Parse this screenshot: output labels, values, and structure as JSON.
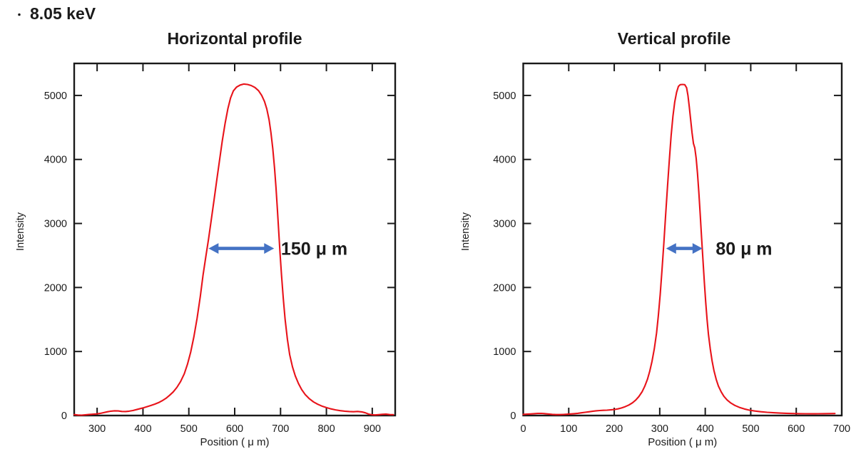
{
  "page": {
    "bullet": "・",
    "energy_label": "8.05 keV"
  },
  "colors": {
    "axis": "#1a1a1a",
    "text": "#1a1a1a",
    "background": "#ffffff"
  },
  "chart_data": [
    {
      "id": "horizontal-profile",
      "type": "line",
      "title": "Horizontal profile",
      "xlabel": "Position ( μ m)",
      "ylabel": "Intensity",
      "xlim": [
        250,
        950
      ],
      "ylim": [
        0,
        5500
      ],
      "xticks": [
        300,
        400,
        500,
        600,
        700,
        800,
        900
      ],
      "yticks": [
        0,
        1000,
        2000,
        3000,
        4000,
        5000
      ],
      "grid": false,
      "legend": "none",
      "line_color": "#e8131a",
      "fwhm_annotation": {
        "text": "150 μ m",
        "fwhm_value_um": 150,
        "arrow_x1": 543,
        "arrow_x2": 686,
        "arrow_y": 2610,
        "label_x": 701,
        "arrow_color": "#4472c4"
      },
      "points": [
        [
          250,
          15
        ],
        [
          258,
          8
        ],
        [
          266,
          6
        ],
        [
          274,
          10
        ],
        [
          282,
          16
        ],
        [
          290,
          20
        ],
        [
          298,
          24
        ],
        [
          306,
          32
        ],
        [
          314,
          44
        ],
        [
          322,
          58
        ],
        [
          330,
          68
        ],
        [
          338,
          73
        ],
        [
          346,
          71
        ],
        [
          354,
          64
        ],
        [
          362,
          62
        ],
        [
          370,
          68
        ],
        [
          378,
          78
        ],
        [
          386,
          92
        ],
        [
          394,
          108
        ],
        [
          402,
          122
        ],
        [
          410,
          140
        ],
        [
          418,
          158
        ],
        [
          426,
          178
        ],
        [
          434,
          202
        ],
        [
          442,
          232
        ],
        [
          450,
          268
        ],
        [
          458,
          315
        ],
        [
          466,
          370
        ],
        [
          474,
          440
        ],
        [
          482,
          530
        ],
        [
          490,
          650
        ],
        [
          497,
          800
        ],
        [
          504,
          990
        ],
        [
          511,
          1230
        ],
        [
          518,
          1520
        ],
        [
          525,
          1860
        ],
        [
          531,
          2190
        ],
        [
          537,
          2480
        ],
        [
          543,
          2760
        ],
        [
          549,
          3060
        ],
        [
          555,
          3370
        ],
        [
          561,
          3680
        ],
        [
          567,
          3990
        ],
        [
          573,
          4290
        ],
        [
          579,
          4560
        ],
        [
          585,
          4790
        ],
        [
          591,
          4960
        ],
        [
          597,
          5070
        ],
        [
          604,
          5130
        ],
        [
          612,
          5163
        ],
        [
          620,
          5178
        ],
        [
          628,
          5172
        ],
        [
          636,
          5155
        ],
        [
          644,
          5125
        ],
        [
          652,
          5075
        ],
        [
          659,
          5000
        ],
        [
          665,
          4905
        ],
        [
          670,
          4790
        ],
        [
          675,
          4620
        ],
        [
          679,
          4420
        ],
        [
          683,
          4170
        ],
        [
          687,
          3860
        ],
        [
          690,
          3560
        ],
        [
          693,
          3230
        ],
        [
          696,
          2880
        ],
        [
          699,
          2530
        ],
        [
          702,
          2200
        ],
        [
          706,
          1830
        ],
        [
          710,
          1500
        ],
        [
          715,
          1190
        ],
        [
          720,
          950
        ],
        [
          726,
          760
        ],
        [
          732,
          620
        ],
        [
          739,
          500
        ],
        [
          746,
          405
        ],
        [
          754,
          325
        ],
        [
          763,
          260
        ],
        [
          772,
          212
        ],
        [
          781,
          176
        ],
        [
          790,
          148
        ],
        [
          800,
          124
        ],
        [
          810,
          104
        ],
        [
          820,
          88
        ],
        [
          830,
          76
        ],
        [
          840,
          68
        ],
        [
          850,
          62
        ],
        [
          859,
          59
        ],
        [
          868,
          63
        ],
        [
          877,
          57
        ],
        [
          885,
          42
        ],
        [
          892,
          22
        ],
        [
          899,
          12
        ],
        [
          906,
          9
        ],
        [
          914,
          13
        ],
        [
          922,
          19
        ],
        [
          930,
          21
        ],
        [
          938,
          15
        ],
        [
          946,
          13
        ]
      ]
    },
    {
      "id": "vertical-profile",
      "type": "line",
      "title": "Vertical profile",
      "xlabel": "Position ( μ m)",
      "ylabel": "Intensity",
      "xlim": [
        0,
        700
      ],
      "ylim": [
        0,
        5500
      ],
      "xticks": [
        0,
        100,
        200,
        300,
        400,
        500,
        600,
        700
      ],
      "yticks": [
        0,
        1000,
        2000,
        3000,
        4000,
        5000
      ],
      "grid": false,
      "legend": "none",
      "line_color": "#e8131a",
      "fwhm_annotation": {
        "text": "80 μ m",
        "fwhm_value_um": 80,
        "arrow_x1": 314,
        "arrow_x2": 394,
        "arrow_y": 2610,
        "label_x": 423,
        "arrow_color": "#4472c4"
      },
      "points": [
        [
          0,
          18
        ],
        [
          8,
          21
        ],
        [
          16,
          25
        ],
        [
          24,
          29
        ],
        [
          32,
          32
        ],
        [
          40,
          33
        ],
        [
          48,
          29
        ],
        [
          56,
          23
        ],
        [
          64,
          18
        ],
        [
          72,
          15
        ],
        [
          80,
          15
        ],
        [
          88,
          17
        ],
        [
          96,
          20
        ],
        [
          104,
          24
        ],
        [
          112,
          29
        ],
        [
          120,
          35
        ],
        [
          128,
          42
        ],
        [
          136,
          50
        ],
        [
          144,
          58
        ],
        [
          152,
          66
        ],
        [
          160,
          73
        ],
        [
          168,
          78
        ],
        [
          176,
          81
        ],
        [
          184,
          84
        ],
        [
          192,
          88
        ],
        [
          200,
          94
        ],
        [
          208,
          104
        ],
        [
          216,
          118
        ],
        [
          224,
          138
        ],
        [
          232,
          164
        ],
        [
          240,
          198
        ],
        [
          247,
          240
        ],
        [
          254,
          295
        ],
        [
          261,
          368
        ],
        [
          267,
          455
        ],
        [
          273,
          565
        ],
        [
          278,
          690
        ],
        [
          283,
          845
        ],
        [
          288,
          1040
        ],
        [
          293,
          1290
        ],
        [
          297,
          1560
        ],
        [
          301,
          1890
        ],
        [
          305,
          2270
        ],
        [
          309,
          2690
        ],
        [
          313,
          3130
        ],
        [
          317,
          3570
        ],
        [
          321,
          3990
        ],
        [
          325,
          4370
        ],
        [
          329,
          4680
        ],
        [
          333,
          4900
        ],
        [
          337,
          5050
        ],
        [
          341,
          5140
        ],
        [
          345,
          5168
        ],
        [
          350,
          5172
        ],
        [
          355,
          5168
        ],
        [
          359,
          5120
        ],
        [
          362,
          5000
        ],
        [
          365,
          4820
        ],
        [
          368,
          4620
        ],
        [
          371,
          4420
        ],
        [
          374,
          4250
        ],
        [
          377,
          4180
        ],
        [
          380,
          4020
        ],
        [
          383,
          3780
        ],
        [
          386,
          3480
        ],
        [
          389,
          3140
        ],
        [
          392,
          2780
        ],
        [
          395,
          2420
        ],
        [
          398,
          2080
        ],
        [
          401,
          1770
        ],
        [
          404,
          1500
        ],
        [
          407,
          1270
        ],
        [
          411,
          1040
        ],
        [
          415,
          855
        ],
        [
          419,
          705
        ],
        [
          424,
          565
        ],
        [
          429,
          460
        ],
        [
          435,
          370
        ],
        [
          441,
          300
        ],
        [
          448,
          243
        ],
        [
          456,
          196
        ],
        [
          465,
          158
        ],
        [
          475,
          127
        ],
        [
          486,
          102
        ],
        [
          497,
          84
        ],
        [
          509,
          70
        ],
        [
          522,
          59
        ],
        [
          536,
          50
        ],
        [
          550,
          43
        ],
        [
          564,
          38
        ],
        [
          578,
          34
        ],
        [
          592,
          31
        ],
        [
          606,
          29
        ],
        [
          620,
          28
        ],
        [
          634,
          27
        ],
        [
          648,
          28
        ],
        [
          660,
          29
        ],
        [
          672,
          30
        ],
        [
          685,
          31
        ]
      ]
    }
  ]
}
